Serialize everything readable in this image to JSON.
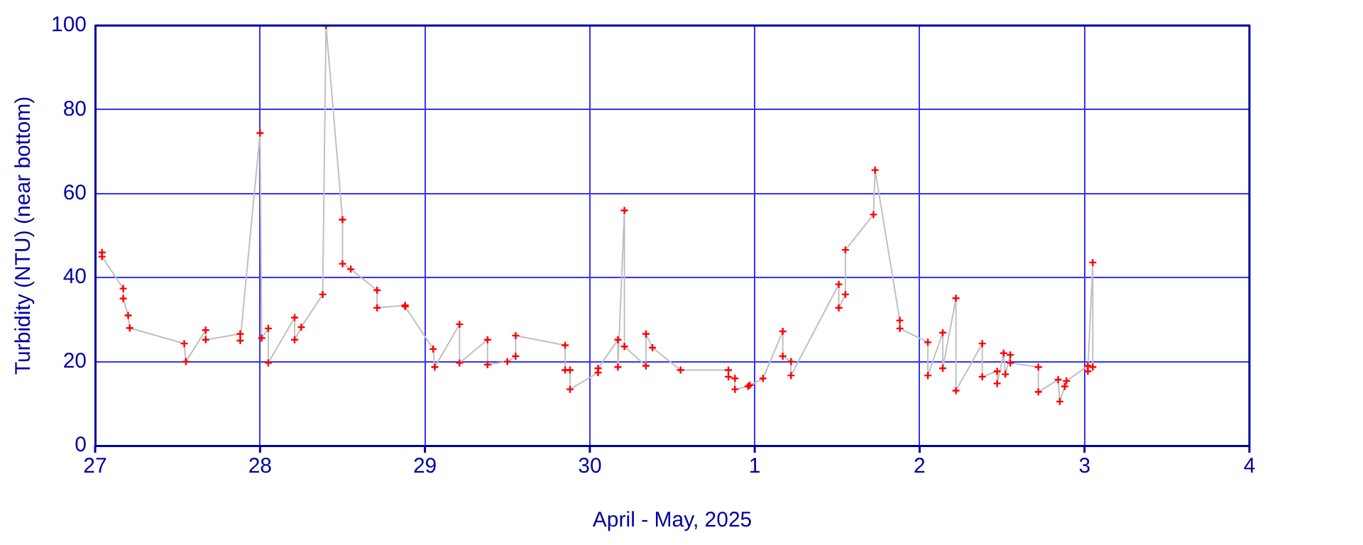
{
  "chart_data": {
    "type": "line",
    "xlabel": "April - May, 2025",
    "ylabel": "Turbidity (NTU) (near bottom)",
    "x": [
      "2025-04-27T01:00",
      "2025-04-27T01:00",
      "2025-04-27T04:05",
      "2025-04-27T04:05",
      "2025-04-27T04:48",
      "2025-04-27T05:02",
      "2025-04-27T12:58",
      "2025-04-27T13:12",
      "2025-04-27T16:05",
      "2025-04-27T16:05",
      "2025-04-27T21:07",
      "2025-04-27T21:07",
      "2025-04-28T00:00",
      "2025-04-28T00:14",
      "2025-04-28T01:12",
      "2025-04-28T01:12",
      "2025-04-28T05:02",
      "2025-04-28T05:02",
      "2025-04-28T06:00",
      "2025-04-28T09:07",
      "2025-04-28T09:36",
      "2025-04-28T12:00",
      "2025-04-28T12:00",
      "2025-04-28T13:12",
      "2025-04-28T17:02",
      "2025-04-28T17:02",
      "2025-04-28T21:07",
      "2025-04-28T21:07",
      "2025-04-29T01:12",
      "2025-04-29T01:26",
      "2025-04-29T05:02",
      "2025-04-29T05:02",
      "2025-04-29T09:07",
      "2025-04-29T09:07",
      "2025-04-29T12:00",
      "2025-04-29T13:12",
      "2025-04-29T13:12",
      "2025-04-29T20:24",
      "2025-04-29T20:24",
      "2025-04-29T21:07",
      "2025-04-29T21:07",
      "2025-04-30T01:12",
      "2025-04-30T01:12",
      "2025-04-30T04:05",
      "2025-04-30T04:05",
      "2025-04-30T05:02",
      "2025-04-30T05:02",
      "2025-04-30T08:10",
      "2025-04-30T08:10",
      "2025-04-30T09:07",
      "2025-04-30T13:12",
      "2025-04-30T20:10",
      "2025-04-30T20:10",
      "2025-04-30T21:07",
      "2025-04-30T21:07",
      "2025-04-30T23:02",
      "2025-04-30T23:17",
      "2025-05-01T01:12",
      "2025-05-01T04:05",
      "2025-05-01T04:05",
      "2025-05-01T05:17",
      "2025-05-01T05:17",
      "2025-05-01T12:14",
      "2025-05-01T12:14",
      "2025-05-01T13:12",
      "2025-05-01T13:12",
      "2025-05-01T17:17",
      "2025-05-01T17:31",
      "2025-05-01T21:07",
      "2025-05-01T21:07",
      "2025-05-02T01:12",
      "2025-05-02T01:12",
      "2025-05-02T03:22",
      "2025-05-02T03:22",
      "2025-05-02T05:17",
      "2025-05-02T05:17",
      "2025-05-02T09:07",
      "2025-05-02T09:07",
      "2025-05-02T11:17",
      "2025-05-02T11:17",
      "2025-05-02T12:14",
      "2025-05-02T12:29",
      "2025-05-02T13:12",
      "2025-05-02T13:12",
      "2025-05-02T17:17",
      "2025-05-02T17:17",
      "2025-05-02T20:10",
      "2025-05-02T20:24",
      "2025-05-02T21:07",
      "2025-05-02T21:22",
      "2025-05-03T00:29",
      "2025-05-03T00:29",
      "2025-05-03T01:12",
      "2025-05-03T01:12"
    ],
    "series": [
      {
        "color": "#c0c0c0",
        "values": [
          46,
          45,
          37.4,
          35,
          31,
          28,
          24.3,
          20,
          27.5,
          25.2,
          26.6,
          25,
          74.4,
          25.6,
          27.9,
          19.7,
          30.5,
          25.2,
          28.2,
          36,
          100,
          53.8,
          43.3,
          42,
          37,
          32.8,
          33.4,
          33.1,
          23,
          18.7,
          28.9,
          19.7,
          25.2,
          19.3,
          20,
          21.3,
          26.2,
          23.9,
          18,
          18,
          13.4,
          17.4,
          18.4,
          25.2,
          18.7,
          56,
          23.6,
          19,
          26.6,
          23.3,
          18,
          18,
          16.4,
          16,
          13.4,
          14.1,
          14.4,
          16,
          27.2,
          21.3,
          20,
          16.7,
          38.4,
          32.8,
          36,
          46.6,
          55,
          65.6,
          29.8,
          27.9,
          24.6,
          16.7,
          26.9,
          18.4,
          35.1,
          13.1,
          24.3,
          16.4,
          17.7,
          14.8,
          22,
          17,
          21.6,
          19.7,
          18.7,
          12.8,
          15.7,
          10.5,
          14.1,
          15.4,
          19,
          17.7,
          43.6,
          18.7
        ]
      }
    ],
    "xlim": [
      "2025-04-27",
      "2025-05-04"
    ],
    "xticks": [
      {
        "value": "2025-04-27",
        "label": "27"
      },
      {
        "value": "2025-04-28",
        "label": "28"
      },
      {
        "value": "2025-04-29",
        "label": "29"
      },
      {
        "value": "2025-04-30",
        "label": "30"
      },
      {
        "value": "2025-05-01",
        "label": "1"
      },
      {
        "value": "2025-05-02",
        "label": "2"
      },
      {
        "value": "2025-05-03",
        "label": "3"
      },
      {
        "value": "2025-05-04",
        "label": "4"
      }
    ],
    "ylim": [
      0,
      100
    ],
    "yticks": [
      0,
      20,
      40,
      60,
      80,
      100
    ],
    "grid": true,
    "marker": "cross",
    "legend": false
  }
}
